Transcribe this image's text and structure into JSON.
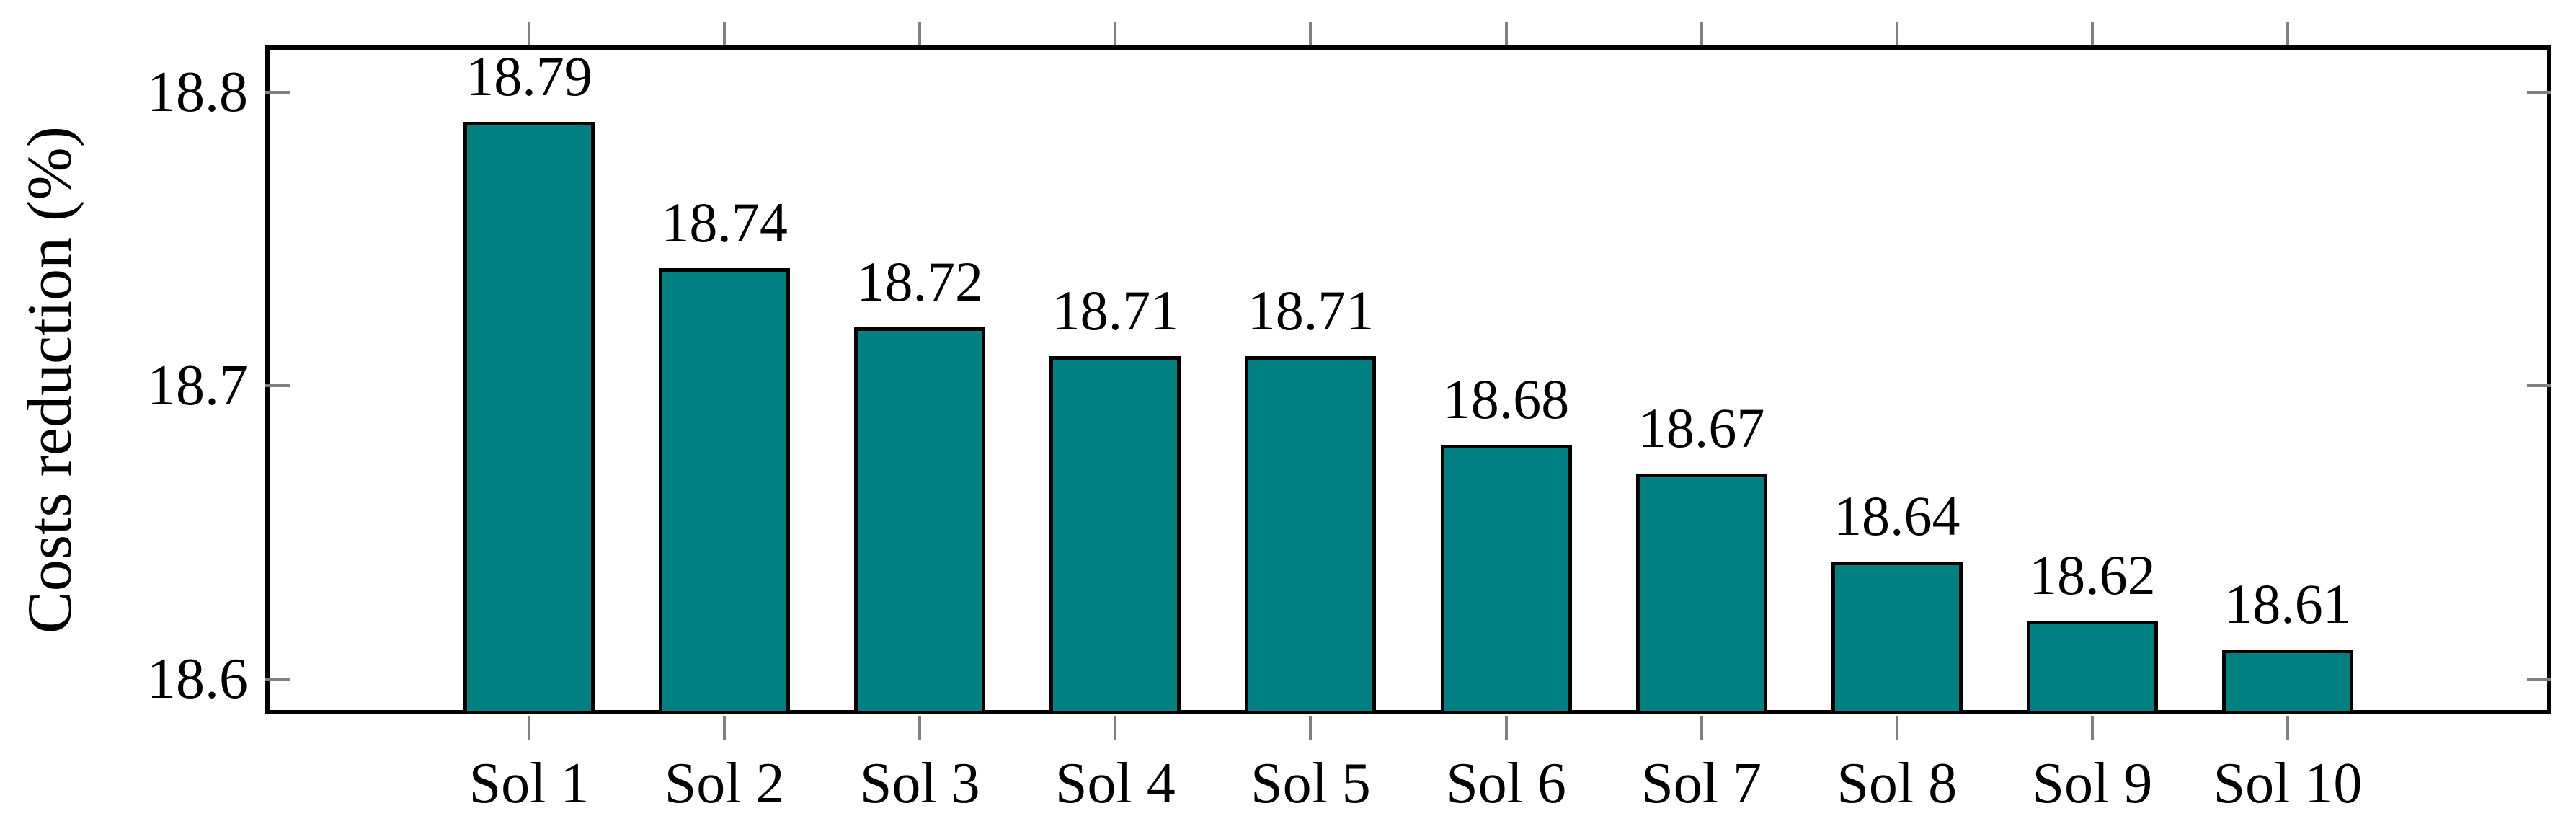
{
  "chart_data": {
    "type": "bar",
    "title": "",
    "xlabel": "",
    "ylabel": "Costs reduction (%)",
    "categories": [
      "Sol 1",
      "Sol 2",
      "Sol 3",
      "Sol 4",
      "Sol 5",
      "Sol 6",
      "Sol 7",
      "Sol 8",
      "Sol 9",
      "Sol 10"
    ],
    "values": [
      18.79,
      18.74,
      18.72,
      18.71,
      18.71,
      18.68,
      18.67,
      18.64,
      18.62,
      18.61
    ],
    "bar_labels": [
      "18.79",
      "18.74",
      "18.72",
      "18.71",
      "18.71",
      "18.68",
      "18.67",
      "18.64",
      "18.62",
      "18.61"
    ],
    "yticks": [
      18.6,
      18.7,
      18.8
    ],
    "ytick_labels": [
      "18.6",
      "18.7",
      "18.8"
    ],
    "ylim": [
      18.588,
      18.816
    ],
    "grid": false,
    "legend": null,
    "colors": {
      "bar_fill": "#008080",
      "bar_border": "#000000",
      "axis_frame": "#000000",
      "tick_mark": "#808080",
      "text": "#000000",
      "background": "#ffffff"
    }
  }
}
